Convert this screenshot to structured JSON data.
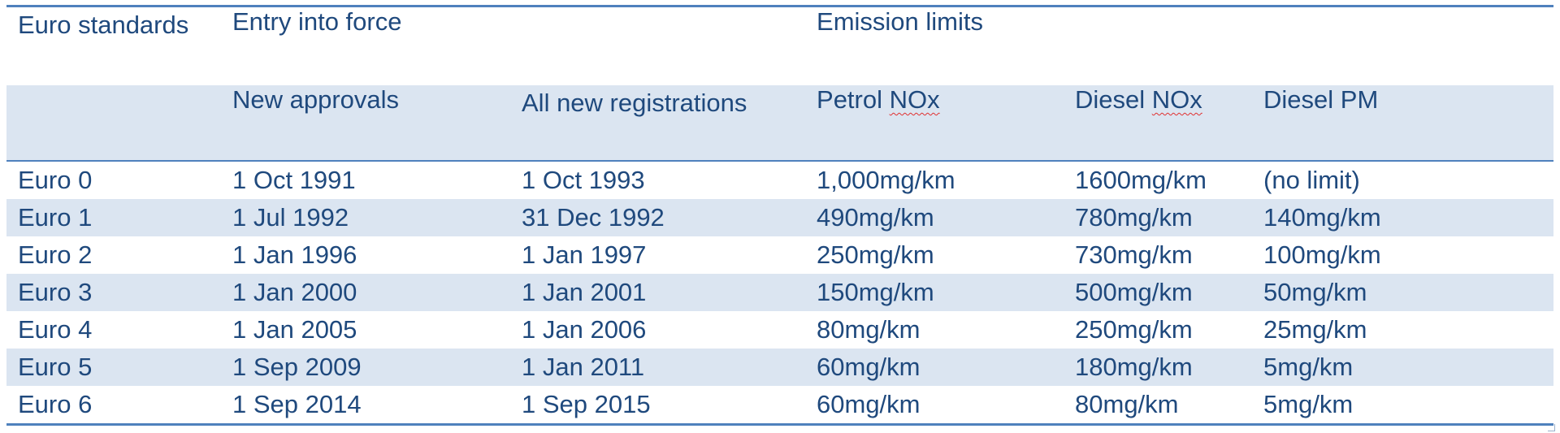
{
  "header": {
    "euro_standards": "Euro standards",
    "entry_into_force": "Entry into force",
    "emission_limits": "Emission limits"
  },
  "subheader": {
    "new_approvals": "New approvals",
    "all_new_registrations": "All new registrations",
    "petrol_nox_prefix": "Petrol ",
    "petrol_nox_unit": "NOx",
    "diesel_nox_prefix": "Diesel ",
    "diesel_nox_unit": "NOx",
    "diesel_pm": "Diesel PM"
  },
  "rows": [
    {
      "standard": "Euro 0",
      "new_approvals": "1 Oct 1991",
      "all_new_registrations": "1 Oct 1993",
      "petrol_nox": "1,000mg/km",
      "diesel_nox": "1600mg/km",
      "diesel_pm": "(no limit)"
    },
    {
      "standard": "Euro 1",
      "new_approvals": "1 Jul 1992",
      "all_new_registrations": "31 Dec 1992",
      "petrol_nox": "490mg/km",
      "diesel_nox": "780mg/km",
      "diesel_pm": "140mg/km"
    },
    {
      "standard": "Euro 2",
      "new_approvals": "1 Jan 1996",
      "all_new_registrations": "1 Jan 1997",
      "petrol_nox": "250mg/km",
      "diesel_nox": "730mg/km",
      "diesel_pm": "100mg/km"
    },
    {
      "standard": "Euro 3",
      "new_approvals": "1 Jan 2000",
      "all_new_registrations": "1 Jan 2001",
      "petrol_nox": "150mg/km",
      "diesel_nox": "500mg/km",
      "diesel_pm": "50mg/km"
    },
    {
      "standard": "Euro 4",
      "new_approvals": "1 Jan 2005",
      "all_new_registrations": "1 Jan 2006",
      "petrol_nox": "80mg/km",
      "diesel_nox": "250mg/km",
      "diesel_pm": "25mg/km"
    },
    {
      "standard": "Euro 5",
      "new_approvals": "1 Sep 2009",
      "all_new_registrations": "1 Jan 2011",
      "petrol_nox": "60mg/km",
      "diesel_nox": "180mg/km",
      "diesel_pm": "5mg/km"
    },
    {
      "standard": "Euro 6",
      "new_approvals": "1 Sep 2014",
      "all_new_registrations": "1 Sep 2015",
      "petrol_nox": "60mg/km",
      "diesel_nox": "80mg/km",
      "diesel_pm": "5mg/km"
    }
  ],
  "colors": {
    "text": "#1f497d",
    "border": "#4f81bd",
    "band": "#dbe5f1",
    "spellcheck": "#e03030"
  }
}
